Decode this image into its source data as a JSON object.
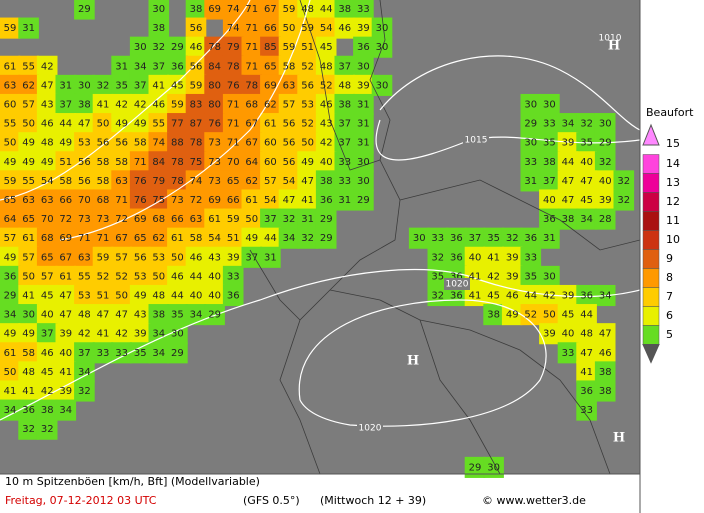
{
  "legend": {
    "title": "Beaufort",
    "levels": [
      15,
      14,
      13,
      12,
      11,
      10,
      9,
      8,
      7,
      6,
      5
    ],
    "colors": [
      "#ff88ff",
      "#ff44dd",
      "#ee0099",
      "#cc0044",
      "#aa1111",
      "#cc3311",
      "#e06010",
      "#ff9900",
      "#ffcc00",
      "#e8f000",
      "#66dd22"
    ]
  },
  "isobar_labels": [
    "1015",
    "1020",
    "1020",
    "1010"
  ],
  "pressure_centers": [
    "H",
    "H",
    "H"
  ],
  "gust_grid_west": [
    [
      null,
      null,
      null,
      null,
      29,
      null,
      null,
      null,
      30,
      null,
      38,
      69,
      74,
      71,
      67,
      59,
      48,
      44,
      38,
      33
    ],
    [
      59,
      31,
      null,
      null,
      null,
      null,
      null,
      null,
      38,
      null,
      56,
      null,
      74,
      71,
      66,
      50,
      59,
      54,
      46,
      39,
      30
    ],
    [
      null,
      null,
      null,
      null,
      null,
      null,
      null,
      30,
      32,
      29,
      46,
      78,
      79,
      71,
      85,
      59,
      51,
      45,
      null,
      36,
      30
    ],
    [
      61,
      55,
      42,
      null,
      null,
      null,
      31,
      34,
      37,
      36,
      56,
      84,
      78,
      71,
      65,
      58,
      52,
      48,
      37,
      30
    ],
    [
      63,
      62,
      47,
      31,
      30,
      32,
      35,
      37,
      41,
      45,
      59,
      80,
      76,
      78,
      69,
      63,
      56,
      52,
      48,
      39,
      30
    ],
    [
      60,
      57,
      43,
      37,
      38,
      41,
      42,
      42,
      46,
      59,
      83,
      80,
      71,
      68,
      62,
      57,
      53,
      46,
      38,
      31
    ],
    [
      55,
      50,
      46,
      44,
      47,
      50,
      49,
      49,
      55,
      77,
      87,
      76,
      71,
      67,
      61,
      56,
      52,
      43,
      37,
      31
    ],
    [
      50,
      49,
      48,
      49,
      53,
      56,
      56,
      58,
      74,
      88,
      78,
      73,
      71,
      67,
      60,
      56,
      50,
      42,
      37,
      31
    ],
    [
      49,
      49,
      49,
      51,
      56,
      58,
      58,
      71,
      84,
      78,
      75,
      73,
      70,
      64,
      60,
      56,
      49,
      40,
      33,
      30
    ],
    [
      59,
      55,
      54,
      58,
      56,
      58,
      63,
      76,
      79,
      78,
      74,
      73,
      65,
      62,
      57,
      54,
      47,
      38,
      33,
      30
    ],
    [
      65,
      63,
      63,
      66,
      70,
      68,
      71,
      76,
      75,
      73,
      72,
      69,
      66,
      61,
      54,
      47,
      41,
      36,
      31,
      29
    ],
    [
      64,
      65,
      70,
      72,
      73,
      73,
      72,
      69,
      68,
      66,
      63,
      61,
      59,
      50,
      37,
      32,
      31,
      29
    ],
    [
      57,
      61,
      68,
      69,
      71,
      71,
      67,
      65,
      62,
      61,
      58,
      54,
      51,
      49,
      44,
      34,
      32,
      29
    ],
    [
      49,
      57,
      65,
      67,
      63,
      59,
      57,
      56,
      53,
      50,
      46,
      43,
      39,
      37,
      31
    ],
    [
      36,
      50,
      57,
      61,
      55,
      52,
      52,
      53,
      50,
      46,
      44,
      40,
      33
    ],
    [
      29,
      41,
      45,
      47,
      53,
      51,
      50,
      49,
      48,
      44,
      40,
      40,
      36
    ],
    [
      34,
      30,
      40,
      47,
      48,
      47,
      47,
      43,
      38,
      35,
      34,
      29
    ],
    [
      49,
      49,
      37,
      39,
      42,
      41,
      42,
      39,
      34,
      30
    ],
    [
      61,
      58,
      46,
      40,
      37,
      33,
      33,
      35,
      34,
      29
    ],
    [
      50,
      48,
      45,
      41,
      34
    ],
    [
      41,
      41,
      42,
      39,
      32
    ],
    [
      34,
      36,
      38,
      34
    ],
    [
      null,
      32,
      32
    ]
  ],
  "gust_grid_east": [
    [
      null,
      null,
      null,
      null,
      null,
      null,
      30,
      30
    ],
    [
      null,
      null,
      null,
      null,
      null,
      null,
      29,
      33,
      34,
      32,
      30
    ],
    [
      null,
      null,
      null,
      null,
      null,
      null,
      30,
      35,
      39,
      35,
      29
    ],
    [
      null,
      null,
      null,
      null,
      null,
      null,
      33,
      38,
      44,
      40,
      32
    ],
    [
      null,
      null,
      null,
      null,
      null,
      null,
      31,
      37,
      47,
      47,
      40,
      32
    ],
    [
      null,
      null,
      null,
      null,
      null,
      null,
      null,
      40,
      47,
      45,
      39,
      32
    ],
    [
      null,
      null,
      null,
      null,
      null,
      null,
      null,
      36,
      38,
      34,
      28
    ],
    [
      30,
      33,
      36,
      37,
      35,
      32,
      36,
      31
    ],
    [
      null,
      32,
      36,
      40,
      41,
      39,
      33
    ],
    [
      null,
      35,
      36,
      41,
      42,
      39,
      35,
      30
    ],
    [
      null,
      32,
      36,
      41,
      45,
      46,
      44,
      42,
      39,
      36,
      34
    ],
    [
      null,
      null,
      null,
      null,
      38,
      49,
      52,
      50,
      45,
      44
    ],
    [
      null,
      null,
      null,
      null,
      null,
      null,
      null,
      39,
      40,
      48,
      47
    ],
    [
      null,
      null,
      null,
      null,
      null,
      null,
      null,
      null,
      33,
      47,
      46
    ],
    [
      null,
      null,
      null,
      null,
      null,
      null,
      null,
      null,
      null,
      41,
      38
    ],
    [
      null,
      null,
      null,
      null,
      null,
      null,
      null,
      null,
      null,
      36,
      38
    ],
    [
      null,
      null,
      null,
      null,
      null,
      null,
      null,
      null,
      null,
      33
    ],
    [],
    [],
    [
      null,
      null,
      null,
      29,
      30
    ]
  ],
  "footer": {
    "variable": "10 m Spitzenböen [km/h, Bft] (Modellvariable)",
    "date": "Freitag, 07-12-2012  03 UTC",
    "model": "(GFS 0.5°)",
    "run": "(Mittwoch 12 + 39)",
    "credit": "© www.wetter3.de"
  }
}
